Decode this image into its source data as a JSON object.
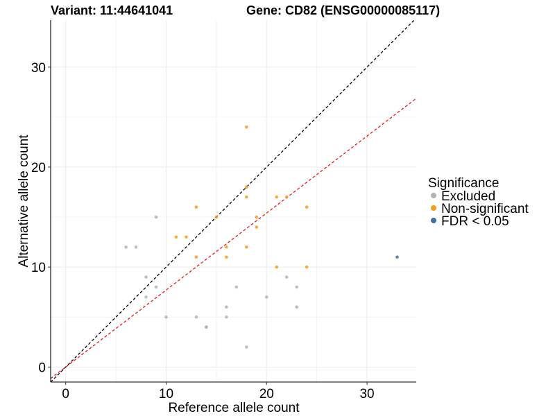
{
  "chart_data": {
    "type": "scatter",
    "title_left": "Variant: 11:44641041",
    "title_right": "Gene: CD82 (ENSG00000085117)",
    "xlabel": "Reference allele count",
    "ylabel": "Alternative allele count",
    "xlim": [
      -1.5,
      34.9
    ],
    "ylim": [
      -1.5,
      34.7
    ],
    "x_ticks": [
      0,
      10,
      20,
      30
    ],
    "y_ticks": [
      0,
      10,
      20,
      30
    ],
    "x_tick_labels": [
      "0",
      "10",
      "20",
      "30"
    ],
    "y_tick_labels": [
      "0",
      "10",
      "20",
      "30"
    ],
    "grid": true,
    "legend_title": "Significance",
    "legend_position": "right",
    "series": [
      {
        "name": "Excluded",
        "color": "#b3b3b3",
        "points": [
          [
            6,
            12
          ],
          [
            7,
            12
          ],
          [
            9,
            15
          ],
          [
            8,
            9
          ],
          [
            9,
            8
          ],
          [
            8,
            7
          ],
          [
            10,
            5
          ],
          [
            13,
            5
          ],
          [
            14,
            4
          ],
          [
            14,
            4
          ],
          [
            16,
            6
          ],
          [
            16,
            5
          ],
          [
            17,
            8
          ],
          [
            18,
            2
          ],
          [
            20,
            7
          ],
          [
            22,
            9
          ],
          [
            23,
            8
          ],
          [
            23,
            6
          ]
        ]
      },
      {
        "name": "Non-significant",
        "color": "#f39c1f",
        "points": [
          [
            11,
            13
          ],
          [
            12,
            13
          ],
          [
            13,
            16
          ],
          [
            13,
            11
          ],
          [
            15,
            15
          ],
          [
            16,
            12
          ],
          [
            16,
            11
          ],
          [
            18,
            24
          ],
          [
            18,
            18
          ],
          [
            18,
            17
          ],
          [
            18,
            12
          ],
          [
            19,
            15
          ],
          [
            19,
            14
          ],
          [
            21,
            17
          ],
          [
            22,
            17
          ],
          [
            21,
            10
          ],
          [
            24,
            16
          ],
          [
            24,
            10
          ]
        ]
      },
      {
        "name": "FDR < 0.05",
        "color": "#3d72a4",
        "points": [
          [
            33,
            11
          ]
        ]
      }
    ],
    "reference_lines": [
      {
        "slope": 1,
        "intercept": 0,
        "color": "#000000",
        "style": "dashed"
      },
      {
        "slope": 0.77,
        "intercept": 0,
        "color": "#e41a1c",
        "style": "dashed"
      }
    ]
  }
}
